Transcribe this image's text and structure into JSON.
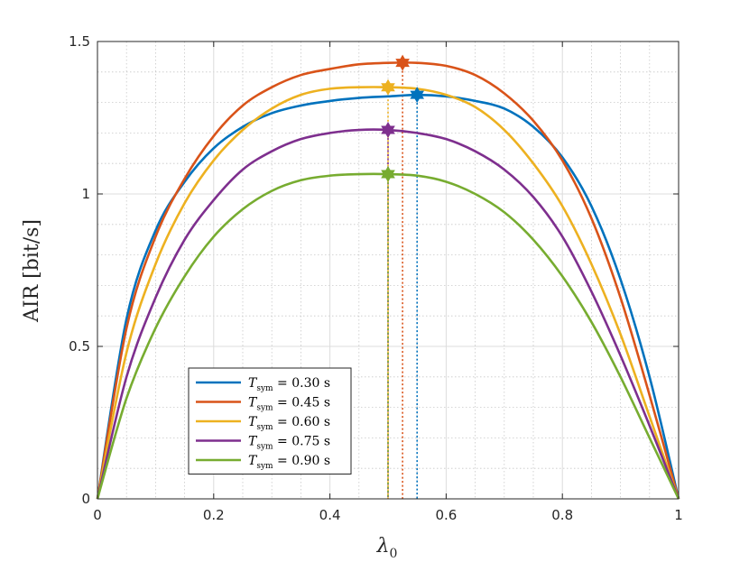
{
  "chart_data": {
    "type": "line",
    "title": "",
    "xlabel": "λ",
    "xlabel_subscript": "0",
    "ylabel": "AIR [bit/s]",
    "xlim": [
      0,
      1
    ],
    "ylim": [
      0,
      1.5
    ],
    "xticks": [
      "0",
      "0.2",
      "0.4",
      "0.6",
      "0.8",
      "1"
    ],
    "yticks": [
      "0",
      "0.5",
      "1",
      "1.5"
    ],
    "grid": "on",
    "minor_grid": "on",
    "legend_location": "bottom-left",
    "x": [
      0,
      0.05,
      0.1,
      0.15,
      0.2,
      0.25,
      0.3,
      0.35,
      0.4,
      0.45,
      0.5,
      0.55,
      0.6,
      0.65,
      0.7,
      0.75,
      0.8,
      0.85,
      0.9,
      0.95,
      1.0
    ],
    "series": [
      {
        "label_main": "T",
        "label_sub": "sym",
        "label_value": "= 0.30 s",
        "color": "#0072BD",
        "values": [
          0.0,
          0.59,
          0.88,
          1.04,
          1.15,
          1.22,
          1.265,
          1.29,
          1.305,
          1.315,
          1.32,
          1.325,
          1.32,
          1.305,
          1.28,
          1.22,
          1.12,
          0.96,
          0.72,
          0.4,
          0.0
        ],
        "optimum": {
          "x": 0.55,
          "y": 1.325
        }
      },
      {
        "label_main": "T",
        "label_sub": "sym",
        "label_value": "= 0.45 s",
        "color": "#D95319",
        "values": [
          0.0,
          0.56,
          0.86,
          1.05,
          1.19,
          1.29,
          1.35,
          1.39,
          1.41,
          1.425,
          1.43,
          1.43,
          1.42,
          1.39,
          1.33,
          1.24,
          1.11,
          0.92,
          0.66,
          0.34,
          0.0
        ],
        "optimum": {
          "x": 0.525,
          "y": 1.43
        }
      },
      {
        "label_main": "T",
        "label_sub": "sym",
        "label_value": "= 0.60 s",
        "color": "#EDB120",
        "values": [
          0.0,
          0.48,
          0.77,
          0.97,
          1.11,
          1.21,
          1.28,
          1.325,
          1.345,
          1.35,
          1.35,
          1.345,
          1.325,
          1.285,
          1.21,
          1.1,
          0.96,
          0.77,
          0.54,
          0.27,
          0.0
        ],
        "optimum": {
          "x": 0.5,
          "y": 1.35
        }
      },
      {
        "label_main": "T",
        "label_sub": "sym",
        "label_value": "= 0.75 s",
        "color": "#7E2F8E",
        "values": [
          0.0,
          0.4,
          0.66,
          0.85,
          0.98,
          1.08,
          1.14,
          1.18,
          1.2,
          1.21,
          1.21,
          1.2,
          1.18,
          1.14,
          1.08,
          0.99,
          0.86,
          0.68,
          0.47,
          0.24,
          0.0
        ],
        "optimum": {
          "x": 0.5,
          "y": 1.21
        }
      },
      {
        "label_main": "T",
        "label_sub": "sym",
        "label_value": "= 0.90 s",
        "color": "#77AC30",
        "values": [
          0.0,
          0.33,
          0.56,
          0.73,
          0.86,
          0.95,
          1.01,
          1.045,
          1.06,
          1.065,
          1.065,
          1.06,
          1.04,
          1.0,
          0.94,
          0.85,
          0.73,
          0.58,
          0.4,
          0.2,
          0.0
        ],
        "optimum": {
          "x": 0.5,
          "y": 1.065
        }
      }
    ]
  }
}
